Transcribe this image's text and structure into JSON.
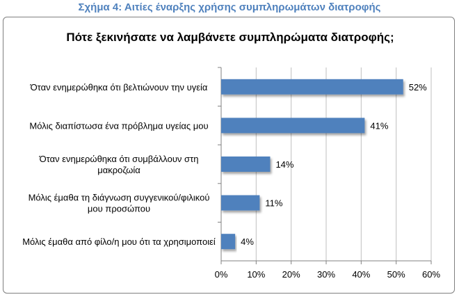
{
  "figure_caption": "Σχήμα 4: Αιτίες έναρξης χρήσης συμπληρωμάτων διατροφής",
  "colors": {
    "bar": "#4f81bd",
    "caption": "#4f81bd",
    "grid": "#bfbfbf",
    "axis": "#808080"
  },
  "chart_data": {
    "type": "bar",
    "orientation": "horizontal",
    "title": "Πότε ξεκινήσατε να λαμβάνετε συμπληρώματα διατροφής;",
    "categories": [
      [
        "Όταν ενημερώθηκα ότι βελτιώνουν την υγεία"
      ],
      [
        "Μόλις διαπίστωσα ένα πρόβλημα υγείας μου"
      ],
      [
        "Όταν ενημερώθηκα ότι συμβάλλουν στη",
        "μακροζωία"
      ],
      [
        "Μόλις έμαθα τη διάγνωση συγγενικού/φιλικού",
        "μου προσώπου"
      ],
      [
        "Μόλις έμαθα από φίλο/η μου ότι τα χρησιμοποιεί"
      ]
    ],
    "values": [
      52,
      41,
      14,
      11,
      4
    ],
    "value_labels": [
      "52%",
      "41%",
      "14%",
      "11%",
      "4%"
    ],
    "xlim": [
      0,
      60
    ],
    "xticks": [
      0,
      10,
      20,
      30,
      40,
      50,
      60
    ],
    "xtick_labels": [
      "0%",
      "10%",
      "20%",
      "30%",
      "40%",
      "50%",
      "60%"
    ],
    "grid": true
  }
}
